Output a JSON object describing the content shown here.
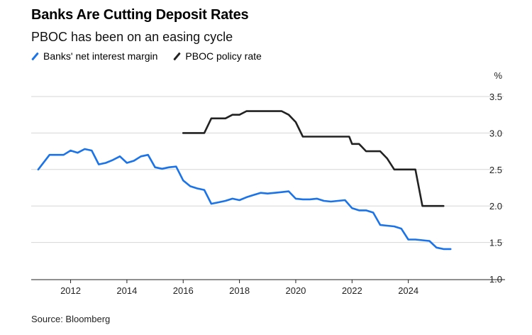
{
  "chart_data": {
    "type": "line",
    "title": "Banks Are Cutting Deposit Rates",
    "subtitle": "PBOC has been on an easing cycle",
    "ylabel": "%",
    "xlabel": "",
    "xlim": [
      2010.6,
      2026.0
    ],
    "ylim": [
      1.0,
      3.5
    ],
    "grid": true,
    "legend_position": "top-left",
    "x_ticks": [
      2012,
      2014,
      2016,
      2018,
      2020,
      2022,
      2024
    ],
    "x_tick_labels": [
      "2012",
      "2014",
      "2016",
      "2018",
      "2020",
      "2022",
      "2024"
    ],
    "y_ticks": [
      1.0,
      1.5,
      2.0,
      2.5,
      3.0,
      3.5
    ],
    "y_tick_labels": [
      "1.0",
      "1.5",
      "2.0",
      "2.5",
      "3.0",
      "3.5"
    ],
    "series": [
      {
        "name": "Banks' net interest margin",
        "color": "#1a73e8",
        "x": [
          2010.85,
          2011.25,
          2011.5,
          2011.75,
          2012.0,
          2012.25,
          2012.5,
          2012.75,
          2013.0,
          2013.25,
          2013.5,
          2013.75,
          2014.0,
          2014.25,
          2014.5,
          2014.75,
          2015.0,
          2015.25,
          2015.5,
          2015.75,
          2016.0,
          2016.25,
          2016.5,
          2016.75,
          2017.0,
          2017.25,
          2017.5,
          2017.75,
          2018.0,
          2018.25,
          2018.5,
          2018.75,
          2019.0,
          2019.25,
          2019.5,
          2019.75,
          2020.0,
          2020.25,
          2020.5,
          2020.75,
          2021.0,
          2021.25,
          2021.5,
          2021.75,
          2022.0,
          2022.25,
          2022.5,
          2022.75,
          2023.0,
          2023.25,
          2023.5,
          2023.75,
          2024.0,
          2024.25,
          2024.5,
          2024.75,
          2025.0,
          2025.25,
          2025.5
        ],
        "values": [
          2.5,
          2.7,
          2.7,
          2.7,
          2.76,
          2.73,
          2.78,
          2.76,
          2.57,
          2.59,
          2.63,
          2.68,
          2.59,
          2.62,
          2.68,
          2.7,
          2.53,
          2.51,
          2.53,
          2.54,
          2.35,
          2.27,
          2.24,
          2.22,
          2.03,
          2.05,
          2.07,
          2.1,
          2.08,
          2.12,
          2.15,
          2.18,
          2.17,
          2.18,
          2.19,
          2.2,
          2.1,
          2.09,
          2.09,
          2.1,
          2.07,
          2.06,
          2.07,
          2.08,
          1.97,
          1.94,
          1.94,
          1.91,
          1.74,
          1.73,
          1.72,
          1.69,
          1.54,
          1.54,
          1.53,
          1.52,
          1.43,
          1.41,
          1.41
        ]
      },
      {
        "name": "PBOC policy rate",
        "color": "#222222",
        "x": [
          2016.0,
          2016.75,
          2017.0,
          2017.5,
          2017.75,
          2018.0,
          2018.25,
          2018.75,
          2019.0,
          2019.25,
          2019.5,
          2019.75,
          2020.0,
          2020.25,
          2020.5,
          2021.0,
          2021.5,
          2021.9,
          2022.0,
          2022.25,
          2022.5,
          2022.75,
          2023.0,
          2023.25,
          2023.5,
          2023.75,
          2024.0,
          2024.25,
          2024.5,
          2024.75,
          2025.0,
          2025.25
        ],
        "values": [
          3.0,
          3.0,
          3.2,
          3.2,
          3.25,
          3.25,
          3.3,
          3.3,
          3.3,
          3.3,
          3.3,
          3.25,
          3.15,
          2.95,
          2.95,
          2.95,
          2.95,
          2.95,
          2.85,
          2.85,
          2.75,
          2.75,
          2.75,
          2.65,
          2.5,
          2.5,
          2.5,
          2.5,
          2.0,
          2.0,
          2.0,
          2.0
        ]
      }
    ],
    "source": "Source: Bloomberg"
  }
}
